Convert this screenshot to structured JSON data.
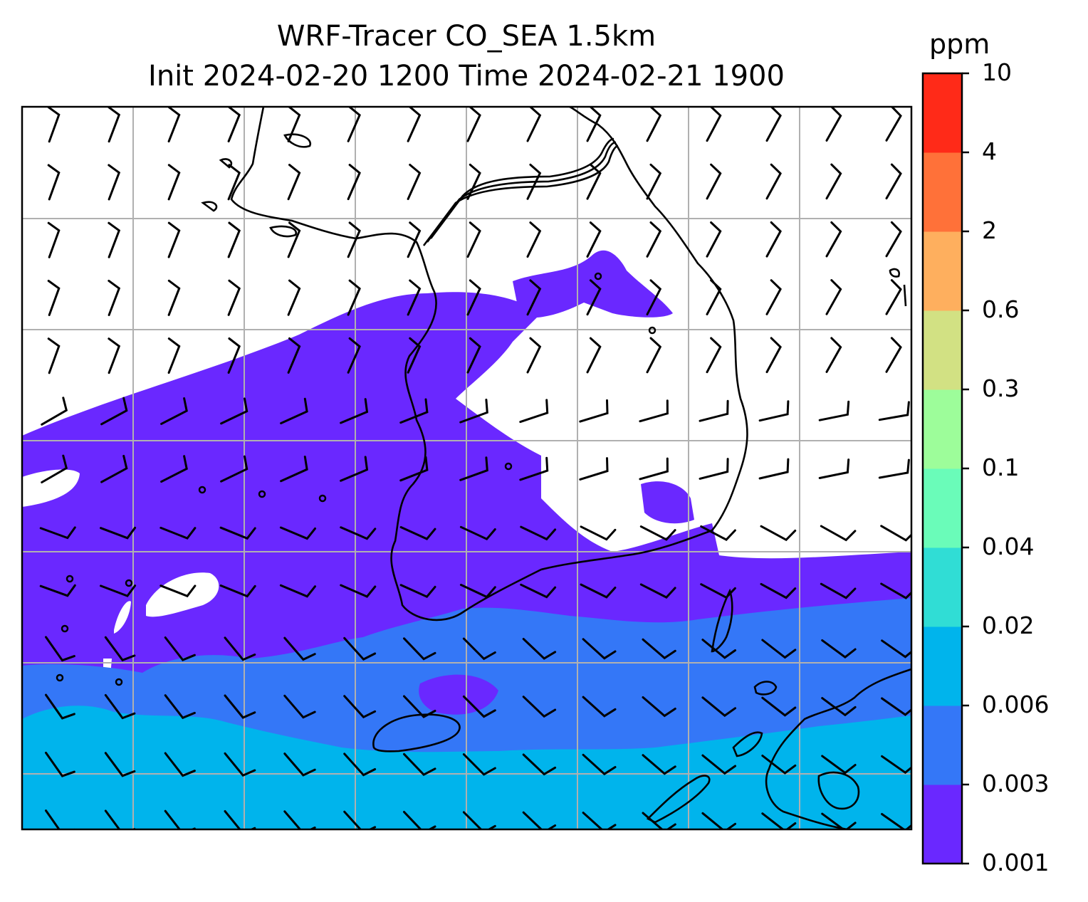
{
  "title": {
    "line1": "WRF-Tracer CO_SEA 1.5km",
    "line2": "Init 2024-02-20 1200 Time 2024-02-21 1900"
  },
  "colorbar": {
    "unit": "ppm",
    "levels": [
      "0.001",
      "0.003",
      "0.006",
      "0.02",
      "0.04",
      "0.1",
      "0.3",
      "0.6",
      "2",
      "4",
      "10"
    ],
    "colors": [
      "#6a28ff",
      "#3477f7",
      "#00b4ec",
      "#30ddd5",
      "#6afcb9",
      "#9dfd9a",
      "#d2e183",
      "#feaf5e",
      "#ff7139",
      "#ff2a18"
    ]
  },
  "map": {
    "frame_color": "#000000",
    "grid_color": "#b0b0b0",
    "coastline_color": "#000000",
    "barb_color": "#000000",
    "background_color": "#ffffff"
  }
}
